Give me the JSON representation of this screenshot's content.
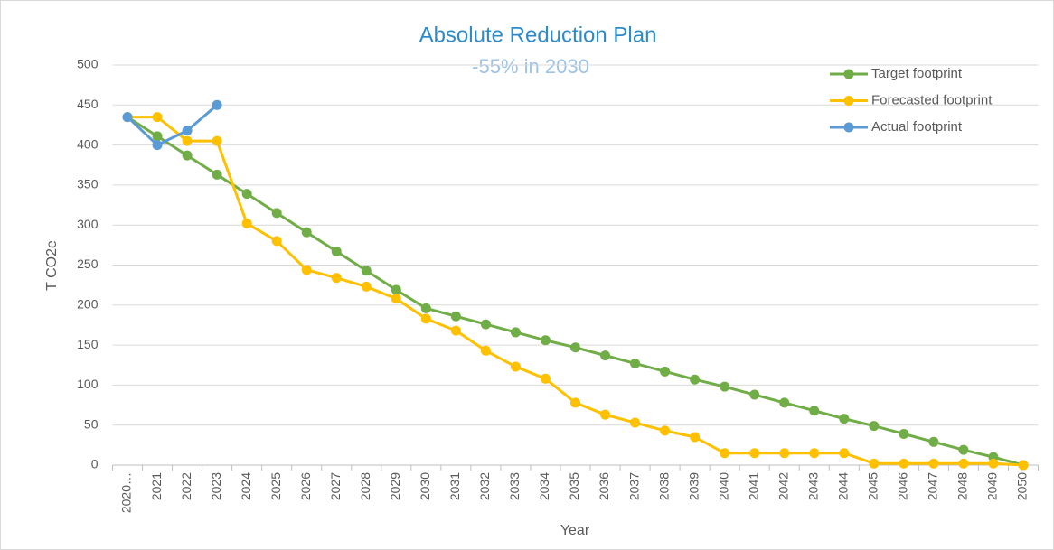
{
  "chart_data": {
    "type": "line",
    "title": "Absolute Reduction Plan",
    "subtitle": "-55% in 2030",
    "x_label": "Year",
    "y_label": "T CO2e",
    "categories": [
      "2020…",
      "2021",
      "2022",
      "2023",
      "2024",
      "2025",
      "2026",
      "2027",
      "2028",
      "2029",
      "2030",
      "2031",
      "2032",
      "2033",
      "2034",
      "2035",
      "2036",
      "2037",
      "2038",
      "2039",
      "2040",
      "2041",
      "2042",
      "2043",
      "2044",
      "2045",
      "2046",
      "2047",
      "2048",
      "2049",
      "2050"
    ],
    "series": [
      {
        "name": "Target footprint",
        "color": "#70ad47",
        "values": [
          435,
          411,
          387,
          363,
          339,
          315,
          291,
          267,
          243,
          219,
          196,
          186,
          176,
          166,
          156,
          147,
          137,
          127,
          117,
          107,
          98,
          88,
          78,
          68,
          58,
          49,
          39,
          29,
          19,
          10,
          0
        ]
      },
      {
        "name": "Forecasted footprint",
        "color": "#ffc000",
        "values": [
          435,
          435,
          405,
          405,
          302,
          280,
          244,
          234,
          223,
          208,
          183,
          168,
          143,
          123,
          108,
          78,
          63,
          53,
          43,
          35,
          15,
          15,
          15,
          15,
          15,
          2,
          2,
          2,
          2,
          2,
          0
        ]
      },
      {
        "name": "Actual footprint",
        "color": "#5b9bd5",
        "values": [
          435,
          400,
          418,
          450,
          null,
          null,
          null,
          null,
          null,
          null,
          null,
          null,
          null,
          null,
          null,
          null,
          null,
          null,
          null,
          null,
          null,
          null,
          null,
          null,
          null,
          null,
          null,
          null,
          null,
          null,
          null
        ]
      }
    ],
    "ylim": [
      0,
      500
    ],
    "yticks": [
      0,
      50,
      100,
      150,
      200,
      250,
      300,
      350,
      400,
      450,
      500
    ],
    "grid": true,
    "legend": "top-right"
  }
}
